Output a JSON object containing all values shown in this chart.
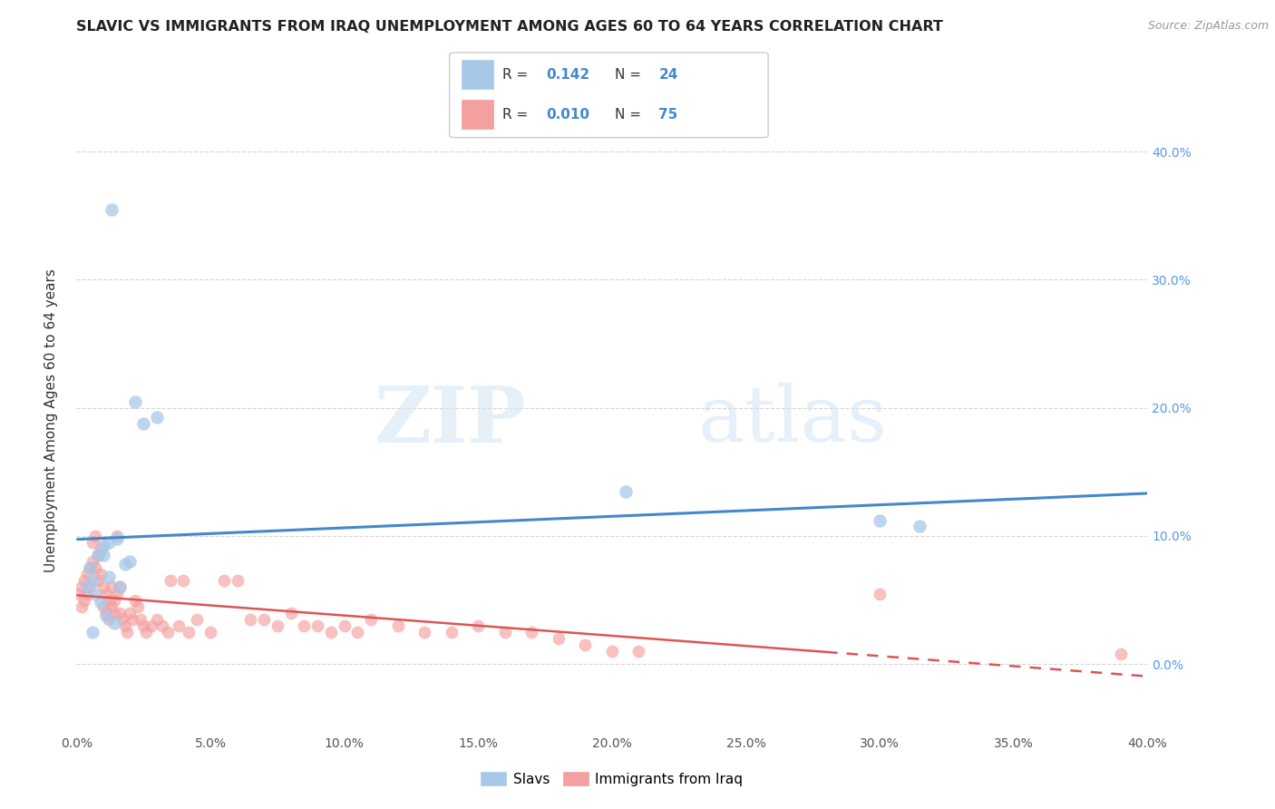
{
  "title": "SLAVIC VS IMMIGRANTS FROM IRAQ UNEMPLOYMENT AMONG AGES 60 TO 64 YEARS CORRELATION CHART",
  "source": "Source: ZipAtlas.com",
  "ylabel": "Unemployment Among Ages 60 to 64 years",
  "xlim": [
    0.0,
    0.4
  ],
  "ylim": [
    -0.05,
    0.43
  ],
  "slavs_R": "0.142",
  "slavs_N": "24",
  "iraq_R": "0.010",
  "iraq_N": "75",
  "slavs_color": "#a8c8e8",
  "iraq_color": "#f4a0a0",
  "slavs_line_color": "#4488cc",
  "iraq_line_color": "#dd5555",
  "slavs_x": [
    0.013,
    0.022,
    0.025,
    0.03,
    0.015,
    0.01,
    0.012,
    0.008,
    0.018,
    0.006,
    0.004,
    0.007,
    0.009,
    0.011,
    0.014,
    0.006,
    0.01,
    0.205,
    0.3,
    0.315,
    0.012,
    0.005,
    0.016,
    0.02
  ],
  "slavs_y": [
    0.355,
    0.205,
    0.188,
    0.193,
    0.098,
    0.092,
    0.095,
    0.085,
    0.078,
    0.065,
    0.06,
    0.055,
    0.048,
    0.038,
    0.032,
    0.025,
    0.085,
    0.135,
    0.112,
    0.108,
    0.068,
    0.075,
    0.06,
    0.08
  ],
  "iraq_x": [
    0.001,
    0.002,
    0.002,
    0.003,
    0.003,
    0.004,
    0.004,
    0.005,
    0.005,
    0.006,
    0.006,
    0.007,
    0.007,
    0.008,
    0.008,
    0.009,
    0.009,
    0.01,
    0.01,
    0.011,
    0.011,
    0.012,
    0.012,
    0.013,
    0.013,
    0.014,
    0.014,
    0.015,
    0.015,
    0.016,
    0.016,
    0.017,
    0.018,
    0.019,
    0.02,
    0.021,
    0.022,
    0.023,
    0.024,
    0.025,
    0.026,
    0.028,
    0.03,
    0.032,
    0.034,
    0.035,
    0.038,
    0.04,
    0.042,
    0.045,
    0.05,
    0.055,
    0.06,
    0.065,
    0.07,
    0.075,
    0.08,
    0.085,
    0.09,
    0.095,
    0.1,
    0.105,
    0.11,
    0.12,
    0.13,
    0.14,
    0.15,
    0.16,
    0.17,
    0.18,
    0.19,
    0.2,
    0.21,
    0.3,
    0.39
  ],
  "iraq_y": [
    0.055,
    0.06,
    0.045,
    0.065,
    0.05,
    0.07,
    0.055,
    0.075,
    0.06,
    0.095,
    0.08,
    0.1,
    0.075,
    0.085,
    0.065,
    0.09,
    0.07,
    0.06,
    0.045,
    0.055,
    0.04,
    0.05,
    0.035,
    0.06,
    0.045,
    0.05,
    0.04,
    0.1,
    0.055,
    0.06,
    0.04,
    0.035,
    0.03,
    0.025,
    0.04,
    0.035,
    0.05,
    0.045,
    0.035,
    0.03,
    0.025,
    0.03,
    0.035,
    0.03,
    0.025,
    0.065,
    0.03,
    0.065,
    0.025,
    0.035,
    0.025,
    0.065,
    0.065,
    0.035,
    0.035,
    0.03,
    0.04,
    0.03,
    0.03,
    0.025,
    0.03,
    0.025,
    0.035,
    0.03,
    0.025,
    0.025,
    0.03,
    0.025,
    0.025,
    0.02,
    0.015,
    0.01,
    0.01,
    0.055,
    0.008
  ]
}
